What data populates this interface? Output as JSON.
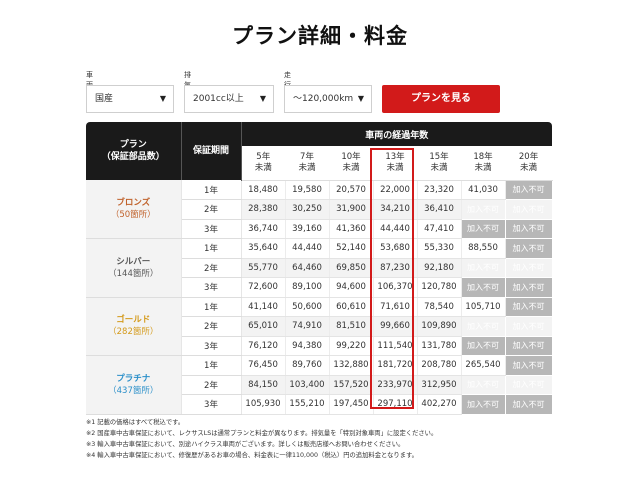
{
  "title": "プラン詳細・料金",
  "filters": [
    {
      "label": "車両区分",
      "value": "国産"
    },
    {
      "label": "排気量",
      "value": "2001cc以上"
    },
    {
      "label": "走行距離",
      "value": "～120,000km"
    }
  ],
  "cta_label": "プランを見る",
  "table": {
    "plan_header": "プラン\n（保証部品数）",
    "period_header": "保証期間",
    "years_header": "車両の経過年数",
    "year_columns": [
      "5年\n未満",
      "7年\n未満",
      "10年\n未満",
      "13年\n未満",
      "15年\n未満",
      "18年\n未満",
      "20年\n未満"
    ],
    "highlight_column": "13年\n未満",
    "na_label": "加入不可",
    "plans": [
      {
        "name": "ブロンズ",
        "parts": "（50箇所）",
        "color": "#c0622b",
        "rows": [
          {
            "period": "1年",
            "values": [
              "18,480",
              "19,580",
              "20,570",
              "22,000",
              "23,320",
              "41,030",
              "加入不可"
            ]
          },
          {
            "period": "2年",
            "values": [
              "28,380",
              "30,250",
              "31,900",
              "34,210",
              "36,410",
              "加入不可",
              "加入不可"
            ]
          },
          {
            "period": "3年",
            "values": [
              "36,740",
              "39,160",
              "41,360",
              "44,440",
              "47,410",
              "加入不可",
              "加入不可"
            ]
          }
        ]
      },
      {
        "name": "シルバー",
        "parts": "（144箇所）",
        "color": "#555555",
        "rows": [
          {
            "period": "1年",
            "values": [
              "35,640",
              "44,440",
              "52,140",
              "53,680",
              "55,330",
              "88,550",
              "加入不可"
            ]
          },
          {
            "period": "2年",
            "values": [
              "55,770",
              "64,460",
              "69,850",
              "87,230",
              "92,180",
              "加入不可",
              "加入不可"
            ]
          },
          {
            "period": "3年",
            "values": [
              "72,600",
              "89,100",
              "94,600",
              "106,370",
              "120,780",
              "加入不可",
              "加入不可"
            ]
          }
        ]
      },
      {
        "name": "ゴールド",
        "parts": "（282箇所）",
        "color": "#d49a1a",
        "rows": [
          {
            "period": "1年",
            "values": [
              "41,140",
              "50,600",
              "60,610",
              "71,610",
              "78,540",
              "105,710",
              "加入不可"
            ]
          },
          {
            "period": "2年",
            "values": [
              "65,010",
              "74,910",
              "81,510",
              "99,660",
              "109,890",
              "加入不可",
              "加入不可"
            ]
          },
          {
            "period": "3年",
            "values": [
              "76,120",
              "94,380",
              "99,220",
              "111,540",
              "131,780",
              "加入不可",
              "加入不可"
            ]
          }
        ]
      },
      {
        "name": "プラチナ",
        "parts": "（437箇所）",
        "color": "#2a8fc9",
        "rows": [
          {
            "period": "1年",
            "values": [
              "76,450",
              "89,760",
              "132,880",
              "181,720",
              "208,780",
              "265,540",
              "加入不可"
            ]
          },
          {
            "period": "2年",
            "values": [
              "84,150",
              "103,400",
              "157,520",
              "233,970",
              "312,950",
              "加入不可",
              "加入不可"
            ]
          },
          {
            "period": "3年",
            "values": [
              "105,930",
              "155,210",
              "197,450",
              "297,110",
              "402,270",
              "加入不可",
              "加入不可"
            ]
          }
        ]
      }
    ]
  },
  "notes": [
    "※1 記載の価格はすべて税込です。",
    "※2 国産車中古車保証において、レクサスLSは通常プランと料金が異なります。排気量を「特別対象車両」に設定ください。",
    "※3 輸入車中古車保証において、別途ハイクラス車両がございます。詳しくは販売店様へお問い合わせください。",
    "※4 輸入車中古車保証において、修復歴があるお車の場合、料金表に一律110,000（税込）円の追加料金となります。"
  ]
}
